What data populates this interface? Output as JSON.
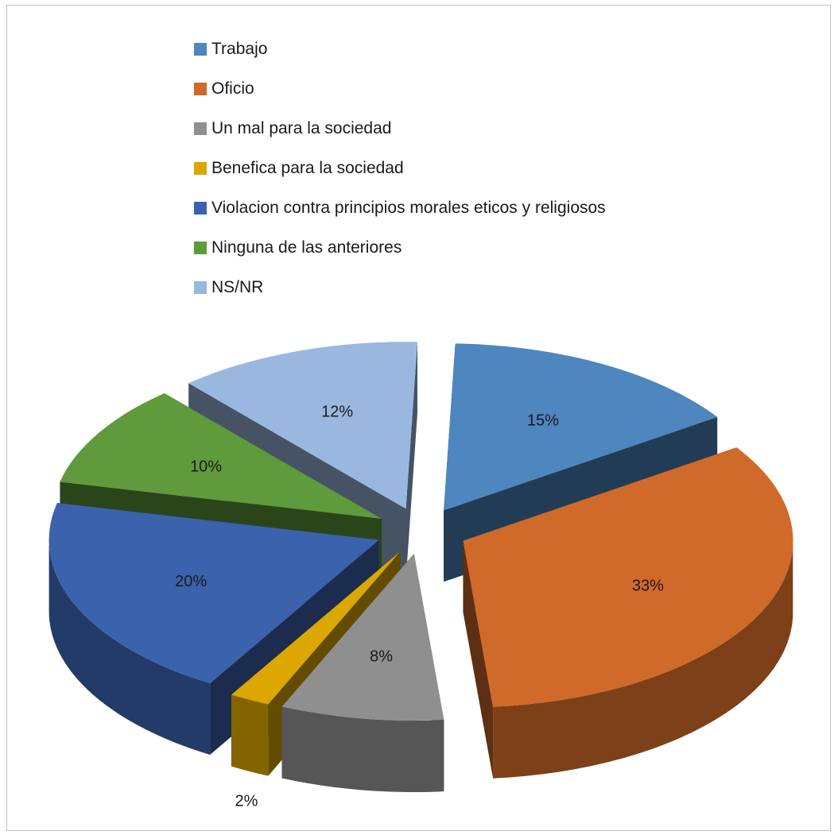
{
  "chart_data": {
    "type": "pie",
    "title": "",
    "style": "3d-exploded",
    "legend_position": "top",
    "categories": [
      "Trabajo",
      "Oficio",
      "Un mal para la sociedad",
      "Benefica para la sociedad",
      "Violacion contra principios morales eticos y religiosos",
      "Ninguna de las anteriores",
      "NS/NR"
    ],
    "values": [
      15,
      33,
      8,
      2,
      20,
      10,
      12
    ],
    "labels": [
      "15%",
      "33%",
      "8%",
      "2%",
      "20%",
      "10%",
      "12%"
    ],
    "colors": [
      "#4e86bf",
      "#d06a2a",
      "#8f8f8f",
      "#dba700",
      "#3b62ad",
      "#5f9a3c",
      "#9ab8df"
    ]
  }
}
